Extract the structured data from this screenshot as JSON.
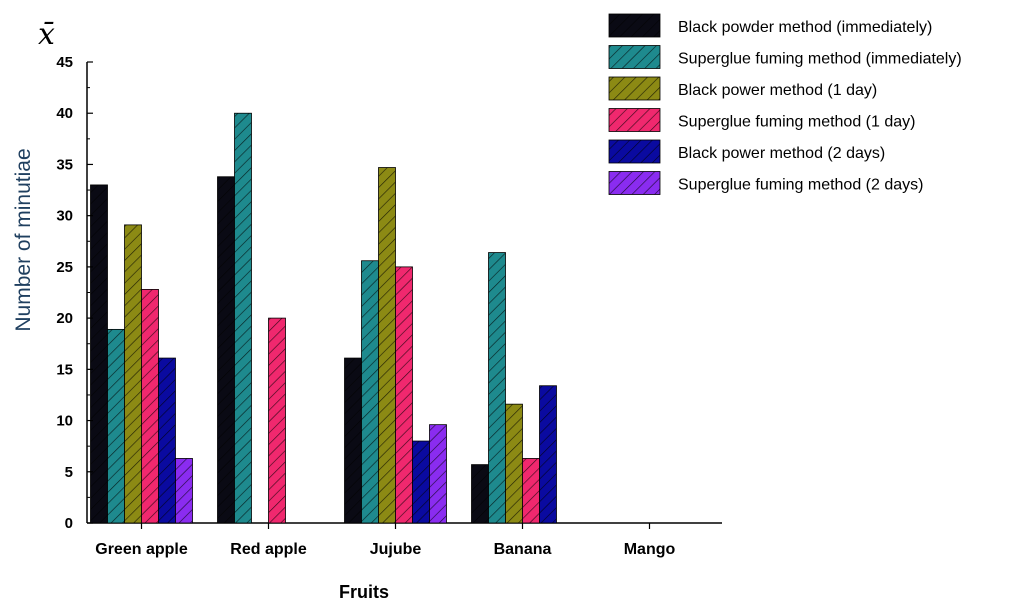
{
  "chart_data": {
    "type": "bar",
    "y_symbol": "x̄",
    "xlabel": "Fruits",
    "ylabel": "Number of minutiae",
    "ylim": [
      0,
      45
    ],
    "yticks": [
      0,
      5,
      10,
      15,
      20,
      25,
      30,
      35,
      40,
      45
    ],
    "grid": false,
    "legend_position": "top-right",
    "categories": [
      "Green apple",
      "Red apple",
      "Jujube",
      "Banana",
      "Mango"
    ],
    "series": [
      {
        "name": "Black powder method (immediately)",
        "color": "#0a0a14",
        "values": [
          33.0,
          33.8,
          16.1,
          5.7,
          0
        ]
      },
      {
        "name": "Superglue fuming method (immediately)",
        "color": "#1e8a8e",
        "values": [
          18.9,
          40.0,
          25.6,
          26.4,
          0
        ]
      },
      {
        "name": "Black power method (1 day)",
        "color": "#8c8a14",
        "values": [
          29.1,
          0,
          34.7,
          11.6,
          0
        ]
      },
      {
        "name": "Superglue fuming method (1 day)",
        "color": "#f0286e",
        "values": [
          22.8,
          20.0,
          25.0,
          6.3,
          0
        ]
      },
      {
        "name": "Black power method (2 days)",
        "color": "#0a0aa0",
        "values": [
          16.1,
          0,
          8.0,
          13.4,
          0
        ]
      },
      {
        "name": "Superglue fuming method (2 days)",
        "color": "#8a2cf0",
        "values": [
          6.3,
          0,
          9.6,
          0,
          0
        ]
      }
    ]
  }
}
